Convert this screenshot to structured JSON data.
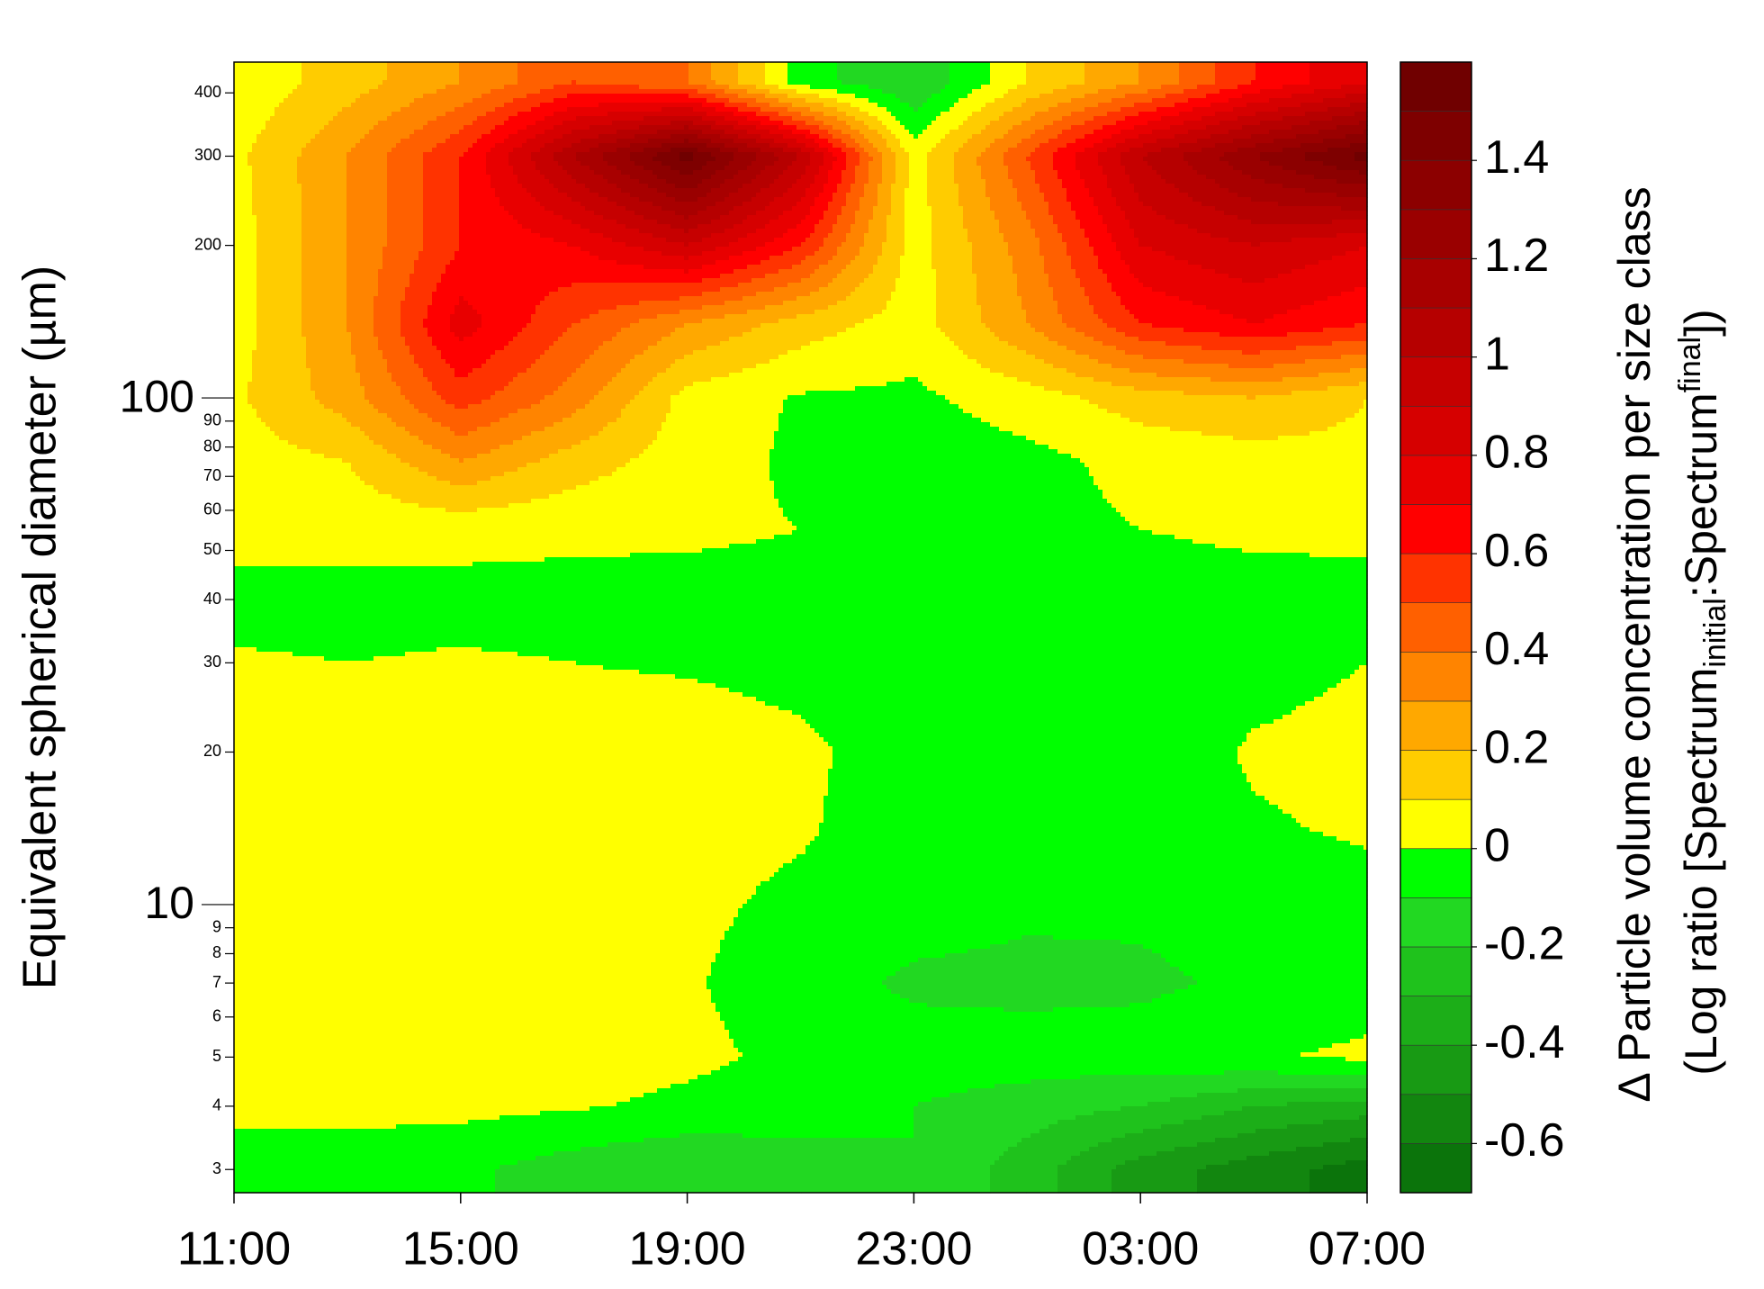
{
  "chart_data": {
    "type": "contour",
    "y_label": "Equivalent spherical diameter (µm)",
    "colorbar_label": [
      "Δ Particle volume concentration per size class",
      "(Log ratio [Spectrum",
      "initial",
      ":Spectrum",
      "final",
      "])"
    ],
    "x": [
      0,
      2,
      4,
      6,
      8,
      10,
      12,
      14,
      16,
      18,
      20
    ],
    "y": [
      3,
      4,
      5,
      7,
      10,
      14,
      20,
      30,
      40,
      55,
      75,
      100,
      140,
      200,
      300,
      420
    ],
    "z": [
      [
        -0.05,
        -0.05,
        -0.08,
        -0.15,
        -0.2,
        -0.15,
        -0.1,
        -0.25,
        -0.45,
        -0.55,
        -0.65
      ],
      [
        0.03,
        0.03,
        0.03,
        0.01,
        -0.02,
        -0.05,
        -0.1,
        -0.15,
        -0.2,
        -0.3,
        -0.35
      ],
      [
        0.05,
        0.05,
        0.05,
        0.04,
        0.02,
        -0.02,
        -0.05,
        -0.05,
        -0.05,
        -0.01,
        0.02
      ],
      [
        0.05,
        0.05,
        0.05,
        0.03,
        0.01,
        -0.05,
        -0.12,
        -0.13,
        -0.12,
        -0.08,
        -0.05
      ],
      [
        0.05,
        0.05,
        0.05,
        0.03,
        0.02,
        -0.02,
        -0.05,
        -0.08,
        -0.08,
        -0.05,
        -0.03
      ],
      [
        0.05,
        0.05,
        0.05,
        0.05,
        0.03,
        0.01,
        -0.05,
        -0.06,
        -0.06,
        -0.01,
        0.01
      ],
      [
        0.05,
        0.05,
        0.05,
        0.05,
        0.05,
        0.02,
        -0.05,
        -0.06,
        -0.05,
        0.01,
        0.03
      ],
      [
        0.01,
        0,
        0.01,
        0,
        -0.01,
        -0.03,
        -0.05,
        -0.06,
        -0.05,
        -0.03,
        0
      ],
      [
        -0.03,
        -0.03,
        -0.03,
        -0.03,
        -0.04,
        -0.04,
        -0.05,
        -0.05,
        -0.05,
        -0.04,
        -0.03
      ],
      [
        0.03,
        0.03,
        0.03,
        0.02,
        0.02,
        0,
        -0.03,
        -0.03,
        0,
        0.02,
        0.02
      ],
      [
        0.05,
        0.1,
        0.3,
        0.15,
        0.05,
        -0.02,
        -0.05,
        -0.03,
        0.03,
        0.05,
        0.07
      ],
      [
        0.08,
        0.25,
        0.55,
        0.35,
        0.06,
        -0.01,
        -0.02,
        0.05,
        0.15,
        0.2,
        0.1
      ],
      [
        0.05,
        0.3,
        0.75,
        0.5,
        0.3,
        0.15,
        0.05,
        0.3,
        0.6,
        0.7,
        0.6
      ],
      [
        0.05,
        0.3,
        0.6,
        0.7,
        0.9,
        0.6,
        0.05,
        0.35,
        0.8,
        0.9,
        0.8
      ],
      [
        0.07,
        0.3,
        0.6,
        1.1,
        1.55,
        1.0,
        0.05,
        0.5,
        1.0,
        1.3,
        1.55
      ],
      [
        0.02,
        0.15,
        0.3,
        0.5,
        0.4,
        -0.05,
        -0.2,
        0.1,
        0.3,
        0.6,
        0.8
      ]
    ],
    "xlim": [
      0,
      20
    ],
    "xticks": [
      {
        "value": 0,
        "label": "11:00"
      },
      {
        "value": 4,
        "label": "15:00"
      },
      {
        "value": 8,
        "label": "19:00"
      },
      {
        "value": 12,
        "label": "23:00"
      },
      {
        "value": 16,
        "label": "03:00"
      },
      {
        "value": 20,
        "label": "07:00"
      }
    ],
    "ylim": [
      2.7,
      460
    ],
    "ylog": true,
    "yticks": [
      3,
      4,
      5,
      6,
      7,
      8,
      9,
      10,
      20,
      30,
      40,
      50,
      60,
      70,
      80,
      90,
      100,
      200,
      300,
      400
    ],
    "levels": [
      -0.7,
      -0.6,
      -0.5,
      -0.4,
      -0.3,
      -0.2,
      -0.1,
      0,
      0.1,
      0.2,
      0.3,
      0.4,
      0.5,
      0.6,
      0.7,
      0.8,
      0.9,
      1.0,
      1.1,
      1.2,
      1.3,
      1.4,
      1.5,
      1.6
    ],
    "colors": [
      "#0b740b",
      "#12860f",
      "#189a14",
      "#1cae18",
      "#1fc21c",
      "#22d822",
      "#00ff00",
      "#ffff00",
      "#ffcc00",
      "#ffa800",
      "#ff8400",
      "#ff6000",
      "#ff3300",
      "#ff0000",
      "#e80000",
      "#d60000",
      "#c60000",
      "#b60000",
      "#a80000",
      "#9a0000",
      "#8c0000",
      "#7e0000",
      "#700000"
    ],
    "cticks": [
      -0.6,
      -0.4,
      -0.2,
      0,
      0.2,
      0.4,
      0.6,
      0.8,
      1,
      1.2,
      1.4
    ]
  }
}
